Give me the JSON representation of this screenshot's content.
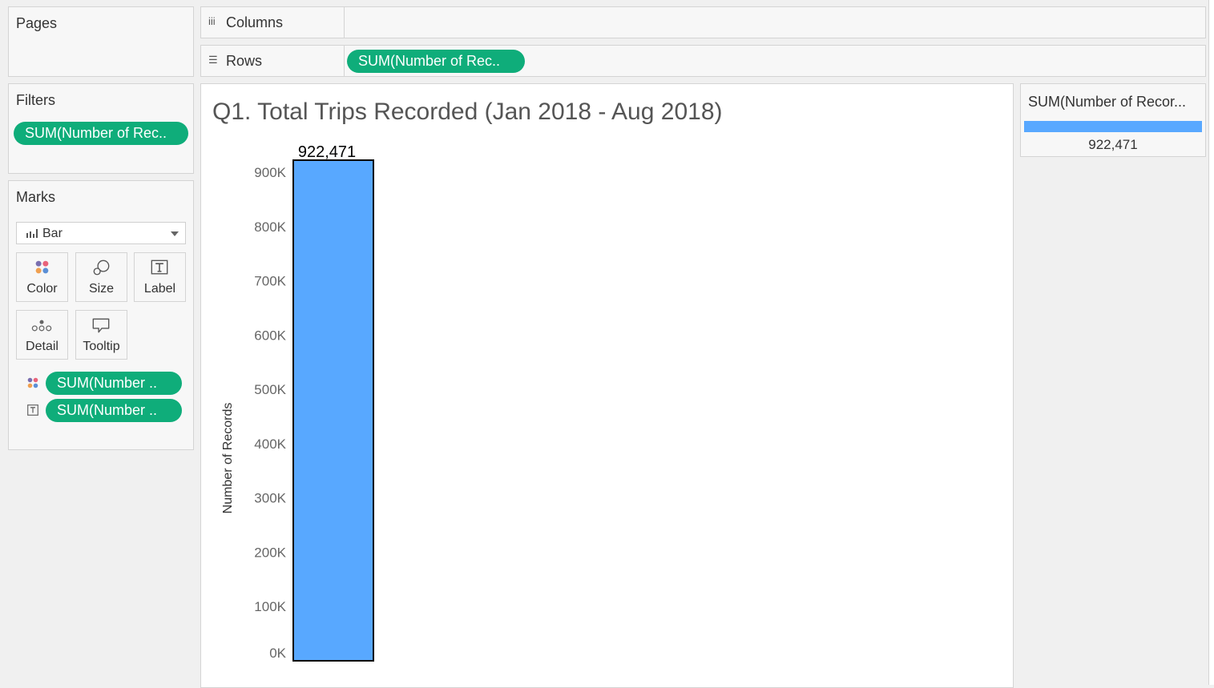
{
  "pages": {
    "title": "Pages"
  },
  "filters": {
    "title": "Filters",
    "pill": "SUM(Number of Rec.."
  },
  "marks": {
    "title": "Marks",
    "mark_type": "Bar",
    "buttons": {
      "color": "Color",
      "size": "Size",
      "label": "Label",
      "detail": "Detail",
      "tooltip": "Tooltip"
    },
    "fields": [
      {
        "encoding": "color-icon",
        "label": "SUM(Number .."
      },
      {
        "encoding": "text-icon",
        "label": "SUM(Number .."
      }
    ]
  },
  "columns_shelf": {
    "label": "Columns",
    "pills": []
  },
  "rows_shelf": {
    "label": "Rows",
    "pill": "SUM(Number of Rec.."
  },
  "legend": {
    "title": "SUM(Number of Recor...",
    "value": "922,471",
    "color": "#58a8ff"
  },
  "colors": {
    "pill": "#0fad7a",
    "bar": "#58a8ff"
  },
  "chart_data": {
    "type": "bar",
    "title": "Q1. Total Trips Recorded (Jan 2018 - Aug 2018)",
    "xlabel": "",
    "ylabel": "Number of Records",
    "categories": [
      ""
    ],
    "values": [
      922471
    ],
    "data_labels": [
      "922,471"
    ],
    "ylim": [
      0,
      922471
    ],
    "yticks": [
      0,
      100000,
      200000,
      300000,
      400000,
      500000,
      600000,
      700000,
      800000,
      900000
    ],
    "ytick_labels": [
      "0K",
      "100K",
      "200K",
      "300K",
      "400K",
      "500K",
      "600K",
      "700K",
      "800K",
      "900K"
    ],
    "grid": false,
    "bar_color": "#58a8ff"
  }
}
